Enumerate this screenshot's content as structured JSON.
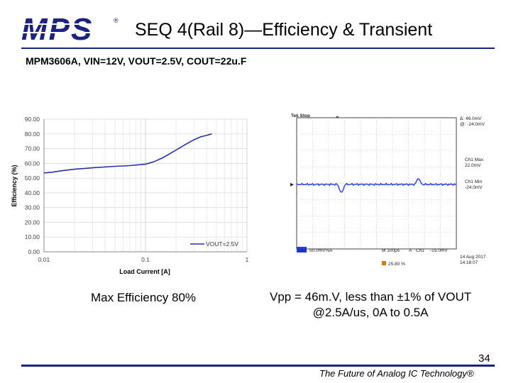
{
  "header": {
    "logo_text": "MPS",
    "logo_mark": "®",
    "title": "SEQ 4(Rail 8)—Efficiency & Transient",
    "brand_color": "#1a237e"
  },
  "subtitle": "MPM3606A, VIN=12V, VOUT=2.5V, COUT=22u.F",
  "chart_data": {
    "type": "line",
    "title": "",
    "xlabel": "Load Current [A]",
    "ylabel": "Efficiency (%)",
    "xscale": "log",
    "xlim": [
      0.01,
      1
    ],
    "ylim": [
      0,
      90
    ],
    "x_ticks": [
      0.01,
      0.1,
      1
    ],
    "x_tick_labels": [
      "0.01",
      "0.1",
      "1"
    ],
    "y_ticks": [
      0,
      10,
      20,
      30,
      40,
      50,
      60,
      70,
      80,
      90
    ],
    "y_tick_labels": [
      "0.00",
      "10.00",
      "20.00",
      "30.00",
      "40.00",
      "50.00",
      "60.00",
      "70.00",
      "80.00",
      "90.00"
    ],
    "grid": true,
    "legend_position": "bottom-right",
    "series": [
      {
        "name": "VOUT=2.5V",
        "color": "#2233aa",
        "x": [
          0.01,
          0.012,
          0.015,
          0.02,
          0.03,
          0.05,
          0.07,
          0.1,
          0.12,
          0.15,
          0.2,
          0.25,
          0.3,
          0.35,
          0.4,
          0.45
        ],
        "y": [
          53.5,
          54,
          55,
          56,
          57,
          58,
          58.5,
          59.5,
          61,
          64,
          69,
          73,
          76,
          78,
          79,
          80
        ]
      }
    ]
  },
  "scope": {
    "header": "Tek Stop",
    "delta": "Δ: 46.0mV",
    "at": "@: -24.0mV",
    "ch1_max_label": "Ch1 Max",
    "ch1_max_value": "22.0mV",
    "ch1_min_label": "Ch1 Min",
    "ch1_min_value": "-24.0mV",
    "channel": "Ch1",
    "scale": "50.0mV%A",
    "timebase": "M 100μs",
    "trigger_src": "A",
    "trigger_ch": "Ch1",
    "trigger_level": "-15.0mV",
    "date": "14 Aug 2017",
    "time": "14:18:07",
    "trigger_pos": "25.80 %",
    "trace_color": "#1e3cff"
  },
  "captions": {
    "left": "Max Efficiency 80%",
    "right_line1": "Vpp = 46m.V, less than ±1% of VOUT",
    "right_line2": "@2.5A/us, 0A to 0.5A"
  },
  "footer": {
    "page_number": "34",
    "tagline": "The Future of Analog IC Technology®"
  }
}
